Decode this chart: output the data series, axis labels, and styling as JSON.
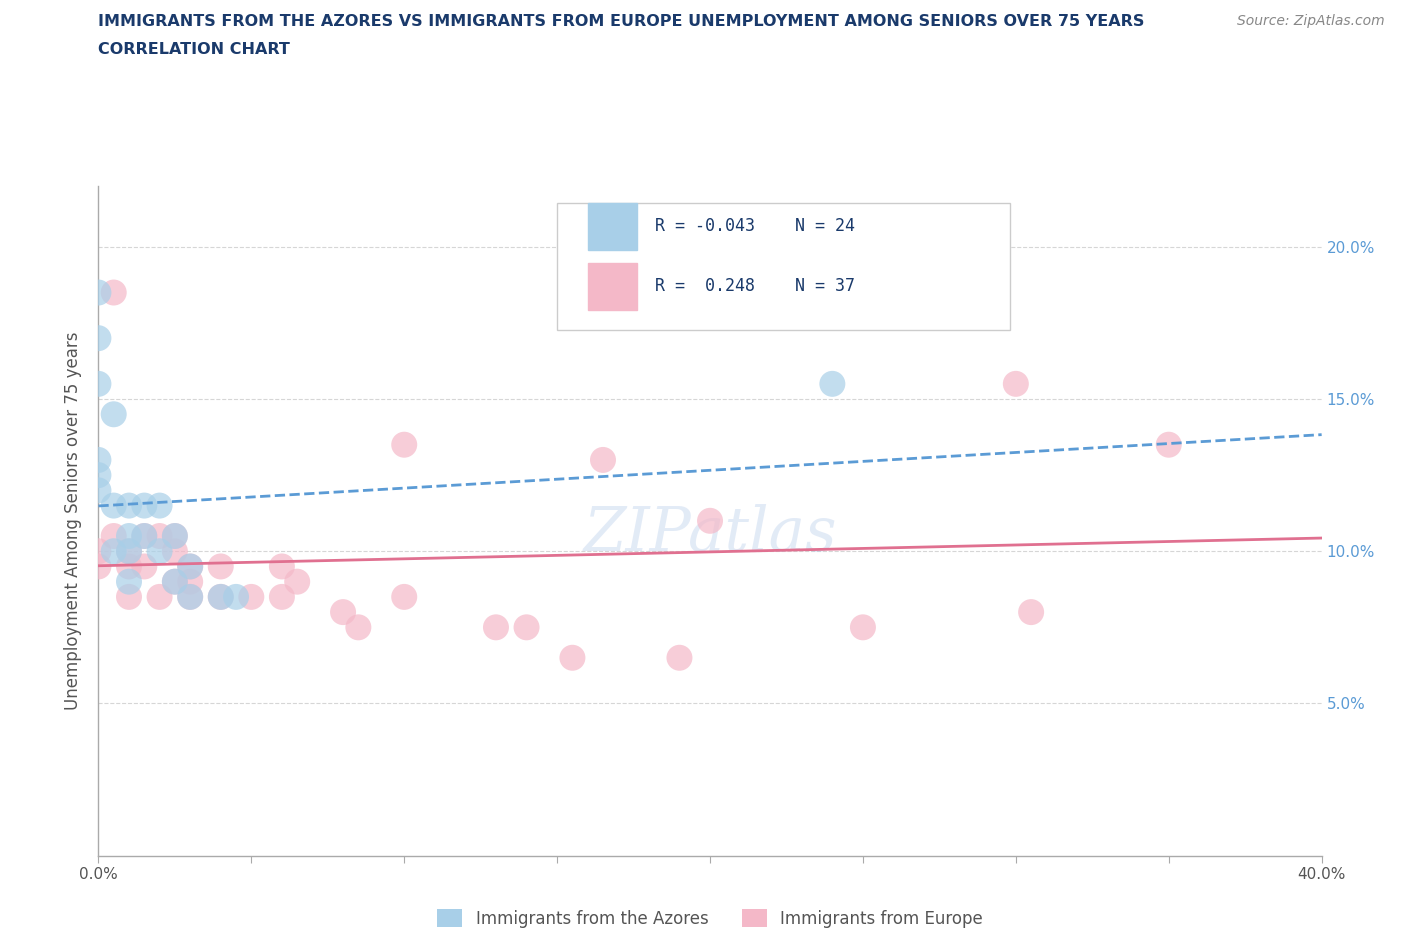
{
  "title_line1": "IMMIGRANTS FROM THE AZORES VS IMMIGRANTS FROM EUROPE UNEMPLOYMENT AMONG SENIORS OVER 75 YEARS",
  "title_line2": "CORRELATION CHART",
  "source_text": "Source: ZipAtlas.com",
  "ylabel": "Unemployment Among Seniors over 75 years",
  "xlim": [
    0.0,
    0.4
  ],
  "ylim": [
    0.0,
    0.22
  ],
  "legend_label1": "Immigrants from the Azores",
  "legend_label2": "Immigrants from Europe",
  "color_blue": "#a8cfe8",
  "color_pink": "#f4b8c8",
  "color_line_blue": "#5b9bd5",
  "color_line_pink": "#e07090",
  "watermark_text": "ZIPatlas",
  "azores_x": [
    0.0,
    0.0,
    0.0,
    0.0,
    0.0,
    0.0,
    0.005,
    0.005,
    0.005,
    0.01,
    0.01,
    0.01,
    0.01,
    0.015,
    0.015,
    0.02,
    0.02,
    0.025,
    0.025,
    0.03,
    0.03,
    0.04,
    0.045,
    0.24
  ],
  "azores_y": [
    0.185,
    0.17,
    0.155,
    0.13,
    0.125,
    0.12,
    0.145,
    0.115,
    0.1,
    0.115,
    0.105,
    0.1,
    0.09,
    0.115,
    0.105,
    0.115,
    0.1,
    0.105,
    0.09,
    0.095,
    0.085,
    0.085,
    0.085,
    0.155
  ],
  "europe_x": [
    0.0,
    0.0,
    0.005,
    0.005,
    0.01,
    0.01,
    0.01,
    0.015,
    0.015,
    0.02,
    0.02,
    0.025,
    0.025,
    0.025,
    0.03,
    0.03,
    0.03,
    0.04,
    0.04,
    0.05,
    0.06,
    0.06,
    0.065,
    0.08,
    0.085,
    0.1,
    0.1,
    0.13,
    0.14,
    0.155,
    0.165,
    0.19,
    0.2,
    0.25,
    0.3,
    0.305,
    0.35
  ],
  "europe_y": [
    0.1,
    0.095,
    0.185,
    0.105,
    0.1,
    0.095,
    0.085,
    0.105,
    0.095,
    0.105,
    0.085,
    0.105,
    0.1,
    0.09,
    0.095,
    0.09,
    0.085,
    0.095,
    0.085,
    0.085,
    0.095,
    0.085,
    0.09,
    0.08,
    0.075,
    0.135,
    0.085,
    0.075,
    0.075,
    0.065,
    0.13,
    0.065,
    0.11,
    0.075,
    0.155,
    0.08,
    0.135
  ]
}
